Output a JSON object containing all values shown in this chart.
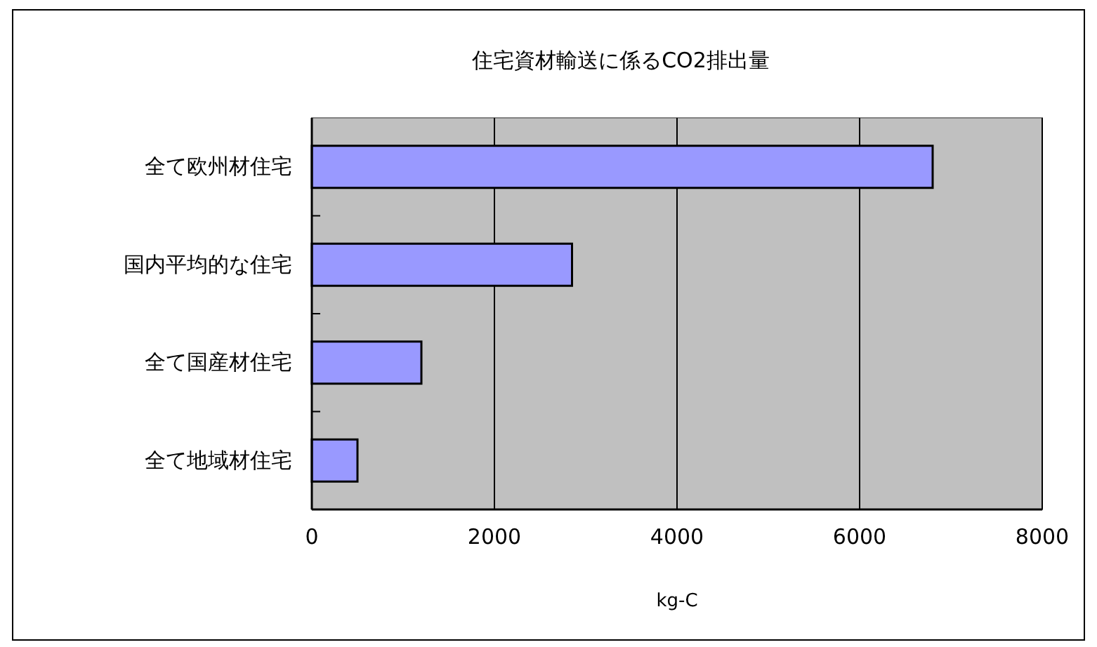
{
  "chart_data": {
    "type": "bar",
    "orientation": "horizontal",
    "title": "住宅資材輸送に係るCO2排出量",
    "xlabel": "kg-C",
    "categories": [
      "全て欧州材住宅",
      "国内平均的な住宅",
      "全て国産材住宅",
      "全て地域材住宅"
    ],
    "values": [
      6800,
      2850,
      1200,
      500
    ],
    "color": "#9999ff",
    "xlim": [
      0,
      8000
    ],
    "xticks": [
      0,
      2000,
      4000,
      6000,
      8000
    ],
    "grid": "x"
  }
}
